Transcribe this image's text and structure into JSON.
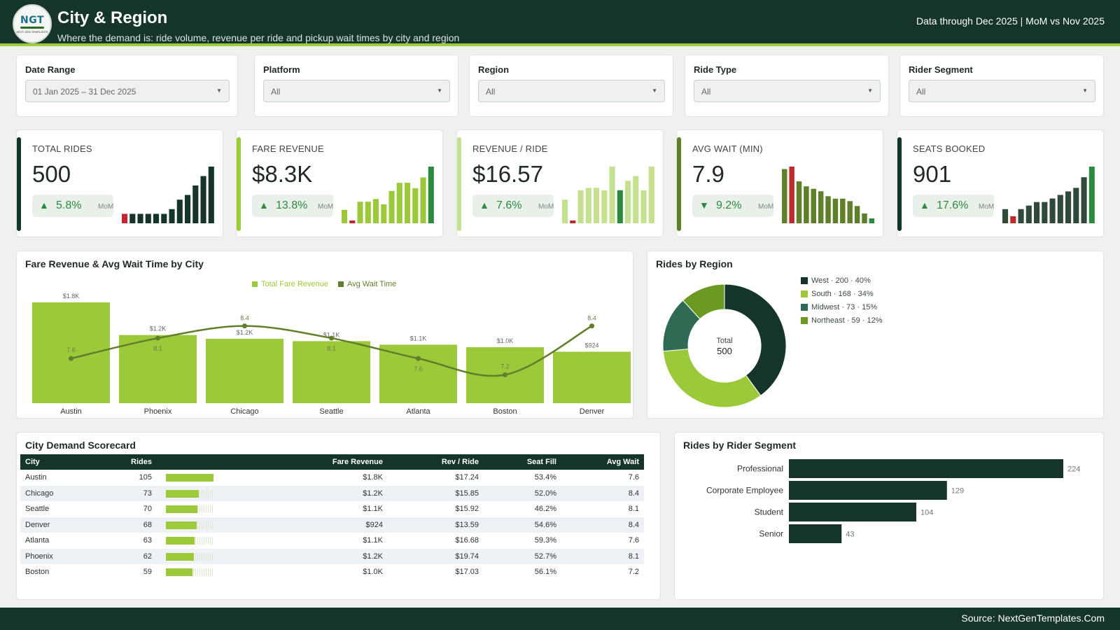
{
  "header": {
    "logo_mark": "NGT",
    "logo_small": "NEXT GEN TEMPLATES",
    "title": "City & Region",
    "subtitle": "Where the demand is: ride volume, revenue per ride and pickup wait times by city and region",
    "data_note": "Data through Dec 2025 | MoM vs Nov 2025"
  },
  "filters": [
    {
      "label": "Date Range",
      "value": "01 Jan 2025 – 31 Dec 2025"
    },
    {
      "label": "Platform",
      "value": "All"
    },
    {
      "label": "Region",
      "value": "All"
    },
    {
      "label": "Ride Type",
      "value": "All"
    },
    {
      "label": "Rider Segment",
      "value": "All"
    }
  ],
  "kpis": [
    {
      "label": "TOTAL RIDES",
      "value": "500",
      "delta": "5.8%",
      "delta_dir": "up",
      "delta_note": "MoM",
      "accent": "#15352a",
      "bar_color": "#15352a",
      "spark": [
        2,
        2,
        2,
        2,
        2,
        2,
        3,
        5,
        6,
        8,
        10,
        12
      ],
      "spark_highlight": {
        "0": "#c0282d"
      }
    },
    {
      "label": "FARE REVENUE",
      "value": "$8.3K",
      "delta": "13.8%",
      "delta_dir": "up",
      "delta_note": "MoM",
      "accent": "#9bc93a",
      "bar_color": "#9bc93a",
      "spark": [
        5,
        1,
        8,
        8,
        9,
        7,
        12,
        15,
        15,
        13,
        17,
        21
      ],
      "spark_highlight": {
        "1": "#c0282d",
        "11": "#2b8a3e"
      }
    },
    {
      "label": "REVENUE / RIDE",
      "value": "$16.57",
      "delta": "7.6%",
      "delta_dir": "up",
      "delta_note": "MoM",
      "accent": "#c5e08e",
      "bar_color": "#c5e08e",
      "spark": [
        10,
        1,
        14,
        15,
        15,
        14,
        24,
        14,
        18,
        20,
        14,
        24
      ],
      "spark_highlight": {
        "1": "#c0282d",
        "7": "#2b8a3e"
      }
    },
    {
      "label": "AVG WAIT (MIN)",
      "value": "7.9",
      "delta": "9.2%",
      "delta_dir": "down",
      "delta_note": "MoM",
      "accent": "#5f7f2a",
      "bar_color": "#5f7f2a",
      "spark": [
        22,
        23,
        17,
        15,
        14,
        13,
        11,
        10,
        10,
        9,
        7,
        4,
        2
      ],
      "spark_highlight": {
        "1": "#c0282d",
        "12": "#2b8a3e"
      }
    },
    {
      "label": "SEATS BOOKED",
      "value": "901",
      "delta": "17.6%",
      "delta_dir": "up",
      "delta_note": "MoM",
      "accent": "#15352a",
      "bar_color": "#2f4a3a",
      "spark": [
        4,
        2,
        4,
        5,
        6,
        6,
        7,
        8,
        9,
        10,
        13,
        16
      ],
      "spark_highlight": {
        "1": "#c0282d",
        "11": "#2b8a3e"
      }
    }
  ],
  "combo": {
    "title": "Fare Revenue & Avg Wait Time by City",
    "legend": [
      "Total Fare Revenue",
      "Avg Wait Time"
    ],
    "bar_color": "#9bc93a",
    "line_color": "#5f7f2a"
  },
  "donut": {
    "title": "Rides by Region",
    "center_label": "Total",
    "center_value": "500",
    "legend": [
      "West · 200 · 40%",
      "South · 168 · 34%",
      "Midwest · 73 · 15%",
      "Northeast · 59 · 12%"
    ]
  },
  "scorecard": {
    "title": "City Demand Scorecard",
    "columns": [
      "City",
      "Rides",
      "Fare Revenue",
      "Rev / Ride",
      "Seat Fill",
      "Avg Wait"
    ],
    "rows": [
      {
        "city": "Austin",
        "rides": "105",
        "ride_frac": 1.0,
        "fare": "$1.8K",
        "rev_ride": "$17.24",
        "seat_fill": "53.4%",
        "avg_wait": "7.6"
      },
      {
        "city": "Chicago",
        "rides": "73",
        "ride_frac": 0.695,
        "fare": "$1.2K",
        "rev_ride": "$15.85",
        "seat_fill": "52.0%",
        "avg_wait": "8.4"
      },
      {
        "city": "Seattle",
        "rides": "70",
        "ride_frac": 0.667,
        "fare": "$1.1K",
        "rev_ride": "$15.92",
        "seat_fill": "46.2%",
        "avg_wait": "8.1"
      },
      {
        "city": "Denver",
        "rides": "68",
        "ride_frac": 0.648,
        "fare": "$924",
        "rev_ride": "$13.59",
        "seat_fill": "54.6%",
        "avg_wait": "8.4"
      },
      {
        "city": "Atlanta",
        "rides": "63",
        "ride_frac": 0.6,
        "fare": "$1.1K",
        "rev_ride": "$16.68",
        "seat_fill": "59.3%",
        "avg_wait": "7.6"
      },
      {
        "city": "Phoenix",
        "rides": "62",
        "ride_frac": 0.59,
        "fare": "$1.2K",
        "rev_ride": "$19.74",
        "seat_fill": "52.7%",
        "avg_wait": "8.1"
      },
      {
        "city": "Boston",
        "rides": "59",
        "ride_frac": 0.562,
        "fare": "$1.0K",
        "rev_ride": "$17.03",
        "seat_fill": "56.1%",
        "avg_wait": "7.2"
      }
    ]
  },
  "segment": {
    "title": "Rides by Rider Segment",
    "bar_color": "#15352a"
  },
  "footer": {
    "source": "Source: NextGenTemplates.Com"
  },
  "chart_data": [
    {
      "type": "bar",
      "title": "Fare Revenue & Avg Wait Time by City",
      "categories": [
        "Austin",
        "Phoenix",
        "Chicago",
        "Seattle",
        "Atlanta",
        "Boston",
        "Denver"
      ],
      "series": [
        {
          "name": "Total Fare Revenue",
          "type": "bar",
          "values": [
            1810,
            1224,
            1157,
            1114,
            1051,
            1005,
            924
          ],
          "labels": [
            "$1.8K",
            "$1.2K",
            "$1.2K",
            "$1.1K",
            "$1.1K",
            "$1.0K",
            "$924"
          ]
        },
        {
          "name": "Avg Wait Time",
          "type": "line",
          "values": [
            7.6,
            8.1,
            8.4,
            8.1,
            7.6,
            7.2,
            8.4
          ],
          "labels": [
            "7.6",
            "8.1",
            "8.4",
            "8.1",
            "7.6",
            "7.2",
            "8.4"
          ]
        }
      ],
      "legend_position": "top"
    },
    {
      "type": "pie",
      "title": "Rides by Region",
      "categories": [
        "West",
        "South",
        "Midwest",
        "Northeast"
      ],
      "values": [
        200,
        168,
        73,
        59
      ],
      "colors": [
        "#15352a",
        "#9bc93a",
        "#2f6b52",
        "#6b9a22"
      ],
      "legend_position": "right"
    },
    {
      "type": "bar",
      "orientation": "horizontal",
      "title": "Rides by Rider Segment",
      "categories": [
        "Professional",
        "Corporate Employee",
        "Student",
        "Senior"
      ],
      "values": [
        224,
        129,
        104,
        43
      ]
    }
  ]
}
